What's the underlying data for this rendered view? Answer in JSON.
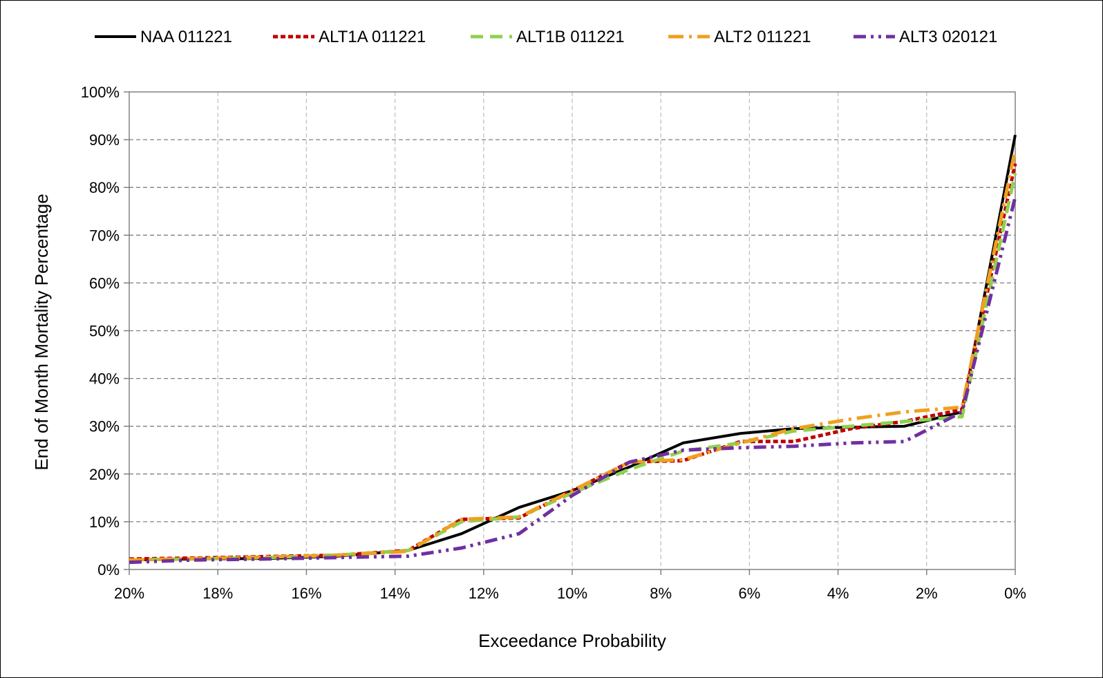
{
  "chart_data": {
    "type": "line",
    "xlabel": "Exceedance Probability",
    "ylabel": "End of Month Mortality Percentage",
    "x_ticks": [
      "20%",
      "18%",
      "16%",
      "14%",
      "12%",
      "10%",
      "8%",
      "6%",
      "4%",
      "2%",
      "0%"
    ],
    "y_ticks": [
      "0%",
      "10%",
      "20%",
      "30%",
      "40%",
      "50%",
      "60%",
      "70%",
      "80%",
      "90%",
      "100%"
    ],
    "xlim": [
      20,
      0
    ],
    "ylim": [
      0,
      100
    ],
    "grid": true,
    "legend_position": "top",
    "series": [
      {
        "name": "NAA 011221",
        "color": "#000000",
        "dash": "solid",
        "x": [
          20,
          18.5,
          16.9,
          15.3,
          13.7,
          12.5,
          11.2,
          10.0,
          8.7,
          7.5,
          6.2,
          5.0,
          3.7,
          2.5,
          1.2,
          0
        ],
        "y": [
          2.0,
          2.2,
          2.3,
          2.8,
          4.0,
          7.5,
          13.0,
          16.5,
          21.5,
          26.5,
          28.5,
          29.5,
          29.8,
          30.0,
          33.0,
          91.0
        ]
      },
      {
        "name": "ALT1A 011221",
        "color": "#c00000",
        "dash": "short-dash",
        "x": [
          20,
          18.5,
          16.9,
          15.3,
          13.7,
          12.5,
          11.2,
          10.0,
          8.7,
          7.5,
          6.2,
          5.0,
          3.7,
          2.5,
          1.2,
          0
        ],
        "y": [
          2.2,
          2.4,
          2.7,
          3.0,
          4.0,
          10.5,
          10.8,
          16.5,
          22.5,
          22.8,
          26.8,
          26.8,
          29.5,
          31.0,
          33.5,
          85.0
        ]
      },
      {
        "name": "ALT1B 011221",
        "color": "#8fd14f",
        "dash": "long-dash",
        "x": [
          20,
          18.5,
          16.9,
          15.3,
          13.7,
          12.5,
          11.2,
          10.0,
          8.7,
          7.5,
          6.2,
          5.0,
          3.7,
          2.5,
          1.2,
          0
        ],
        "y": [
          2.0,
          2.2,
          2.5,
          3.0,
          4.0,
          10.0,
          11.0,
          16.0,
          21.0,
          24.8,
          26.5,
          29.0,
          30.0,
          31.0,
          32.0,
          83.0
        ]
      },
      {
        "name": "ALT2 011221",
        "color": "#f0a01e",
        "dash": "dash-dot",
        "x": [
          20,
          18.5,
          16.9,
          15.3,
          13.7,
          12.5,
          11.2,
          10.0,
          8.7,
          7.5,
          6.2,
          5.0,
          3.7,
          2.5,
          1.2,
          0
        ],
        "y": [
          2.0,
          2.3,
          2.6,
          3.0,
          3.8,
          10.5,
          11.0,
          16.5,
          22.5,
          23.0,
          26.5,
          29.5,
          31.5,
          33.0,
          34.0,
          88.0
        ]
      },
      {
        "name": "ALT3 020121",
        "color": "#7030a0",
        "dash": "dash-dot-dot",
        "x": [
          20,
          18.5,
          16.9,
          15.3,
          13.7,
          12.5,
          11.2,
          10.0,
          8.7,
          7.5,
          6.2,
          5.0,
          3.7,
          2.5,
          1.2,
          0
        ],
        "y": [
          1.5,
          2.0,
          2.2,
          2.5,
          2.8,
          4.5,
          7.5,
          15.5,
          22.5,
          25.0,
          25.5,
          25.8,
          26.5,
          26.8,
          33.0,
          78.0
        ]
      }
    ]
  }
}
